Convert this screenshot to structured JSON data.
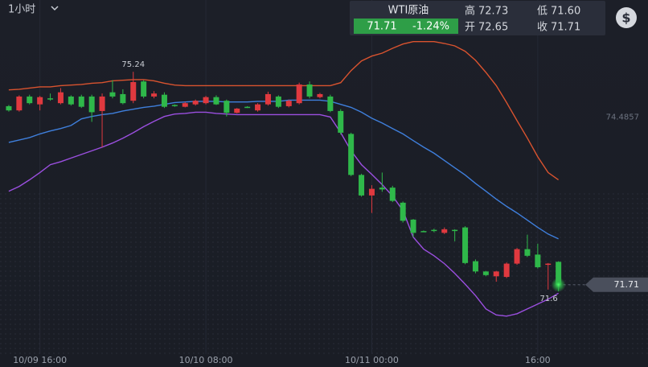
{
  "header": {
    "interval": "1小时",
    "symbol": "WTI原油",
    "price": "71.71",
    "change": "-1.24%",
    "high_label": "高",
    "high": "72.73",
    "low_label": "低",
    "low": "71.60",
    "open_label": "开",
    "open": "72.65",
    "close_label": "收",
    "close": "71.71"
  },
  "chart_data": {
    "type": "candlestick",
    "categories": [
      null,
      null,
      null,
      "10/09 16:00",
      null,
      null,
      null,
      null,
      null,
      null,
      null,
      null,
      null,
      null,
      null,
      null,
      null,
      null,
      null,
      "10/10 08:00",
      null,
      null,
      null,
      null,
      null,
      null,
      null,
      null,
      null,
      null,
      null,
      null,
      null,
      null,
      null,
      "10/11 00:00",
      null,
      null,
      null,
      null,
      null,
      null,
      null,
      null,
      null,
      null,
      null,
      null,
      null,
      null,
      null,
      "16:00",
      null,
      null
    ],
    "open": [
      74.67,
      74.6,
      74.83,
      74.7,
      74.8,
      74.72,
      74.83,
      74.83,
      74.83,
      74.59,
      74.9,
      74.87,
      74.76,
      75.08,
      74.83,
      74.86,
      74.69,
      74.66,
      74.7,
      74.72,
      74.82,
      74.76,
      74.56,
      74.66,
      74.6,
      74.7,
      74.83,
      74.67,
      74.72,
      75.03,
      74.82,
      74.83,
      74.59,
      74.21,
      73.53,
      73.19,
      73.32,
      73.32,
      73.07,
      72.79,
      72.6,
      72.62,
      72.57,
      72.62,
      72.66,
      72.1,
      71.93,
      71.85,
      71.84,
      72.06,
      72.3,
      72.21,
      72.04,
      72.09
    ],
    "high": [
      74.69,
      74.85,
      74.86,
      74.84,
      74.88,
      74.97,
      74.85,
      74.86,
      74.86,
      74.88,
      75.1,
      74.95,
      75.24,
      75.1,
      74.92,
      74.9,
      74.7,
      74.74,
      74.78,
      74.84,
      74.85,
      74.78,
      74.64,
      74.67,
      74.72,
      74.91,
      74.85,
      74.78,
      75.06,
      75.08,
      74.89,
      74.86,
      74.62,
      74.23,
      73.55,
      73.36,
      73.57,
      73.35,
      73.09,
      72.8,
      72.61,
      72.64,
      72.66,
      72.63,
      72.68,
      72.13,
      71.94,
      71.94,
      72.08,
      72.32,
      72.54,
      72.39,
      72.07,
      72.1
    ],
    "low": [
      74.58,
      74.58,
      74.7,
      74.6,
      74.76,
      74.7,
      74.68,
      74.64,
      74.41,
      73.99,
      74.8,
      74.7,
      74.72,
      74.8,
      74.8,
      74.64,
      74.66,
      74.65,
      74.68,
      74.7,
      74.69,
      74.5,
      74.55,
      74.64,
      74.58,
      74.68,
      74.64,
      74.65,
      74.7,
      74.8,
      74.8,
      74.57,
      74.2,
      73.51,
      73.17,
      72.9,
      73.25,
      73.08,
      72.74,
      72.5,
      72.58,
      72.58,
      72.55,
      72.43,
      72.05,
      71.9,
      71.85,
      71.76,
      71.82,
      72.04,
      72.17,
      71.98,
      71.63,
      71.6
    ],
    "close": [
      74.6,
      74.83,
      74.72,
      74.82,
      74.79,
      74.9,
      74.7,
      74.66,
      74.57,
      74.83,
      74.83,
      74.72,
      75.07,
      74.83,
      74.88,
      74.66,
      74.67,
      74.72,
      74.76,
      74.82,
      74.7,
      74.56,
      74.63,
      74.65,
      74.7,
      74.87,
      74.66,
      74.76,
      75.03,
      74.83,
      74.87,
      74.59,
      74.23,
      73.53,
      73.19,
      73.3,
      73.29,
      73.1,
      72.77,
      72.57,
      72.59,
      72.6,
      72.63,
      72.6,
      72.07,
      71.93,
      71.87,
      71.93,
      72.06,
      72.3,
      72.19,
      72.0,
      72.06,
      71.71
    ],
    "up_color": "#e0393f",
    "down_color": "#2fb84a",
    "bands": [
      {
        "color": "#d9532f",
        "values": [
          74.94,
          74.95,
          74.97,
          74.99,
          74.99,
          75.01,
          75.02,
          75.03,
          75.05,
          75.06,
          75.09,
          75.1,
          75.11,
          75.11,
          75.09,
          75.05,
          75.02,
          75.01,
          75.01,
          75.01,
          75.01,
          75.01,
          75.01,
          75.01,
          75.01,
          75.01,
          75.01,
          75.01,
          75.01,
          75.01,
          75.01,
          75.01,
          75.06,
          75.26,
          75.42,
          75.5,
          75.55,
          75.63,
          75.7,
          75.74,
          75.74,
          75.74,
          75.71,
          75.67,
          75.58,
          75.43,
          75.23,
          75.01,
          74.73,
          74.43,
          74.14,
          73.83,
          73.57,
          73.45
        ]
      },
      {
        "color": "#3f7fdc",
        "values": [
          74.07,
          74.11,
          74.15,
          74.21,
          74.26,
          74.3,
          74.35,
          74.46,
          74.5,
          74.53,
          74.55,
          74.59,
          74.62,
          74.65,
          74.67,
          74.7,
          74.73,
          74.74,
          74.75,
          74.75,
          74.75,
          74.74,
          74.74,
          74.74,
          74.75,
          74.75,
          74.75,
          74.77,
          74.77,
          74.77,
          74.77,
          74.75,
          74.7,
          74.65,
          74.57,
          74.47,
          74.39,
          74.3,
          74.21,
          74.1,
          73.99,
          73.89,
          73.77,
          73.65,
          73.53,
          73.39,
          73.26,
          73.13,
          73.01,
          72.9,
          72.78,
          72.66,
          72.55,
          72.47
        ]
      },
      {
        "color": "#9b4fe0",
        "values": [
          73.26,
          73.34,
          73.45,
          73.57,
          73.7,
          73.75,
          73.81,
          73.87,
          73.93,
          73.99,
          74.06,
          74.14,
          74.23,
          74.33,
          74.42,
          74.5,
          74.54,
          74.55,
          74.57,
          74.57,
          74.55,
          74.54,
          74.53,
          74.53,
          74.53,
          74.53,
          74.53,
          74.53,
          74.53,
          74.53,
          74.53,
          74.49,
          74.23,
          73.93,
          73.7,
          73.54,
          73.37,
          73.18,
          72.94,
          72.5,
          72.3,
          72.19,
          72.06,
          71.9,
          71.72,
          71.53,
          71.31,
          71.21,
          71.19,
          71.23,
          71.31,
          71.39,
          71.47,
          71.57
        ]
      }
    ],
    "ylim": [
      70.4,
      76.43
    ],
    "high_label": 75.24,
    "low_label": 71.6,
    "ref_level": 74.4857,
    "last_price": 71.71
  }
}
